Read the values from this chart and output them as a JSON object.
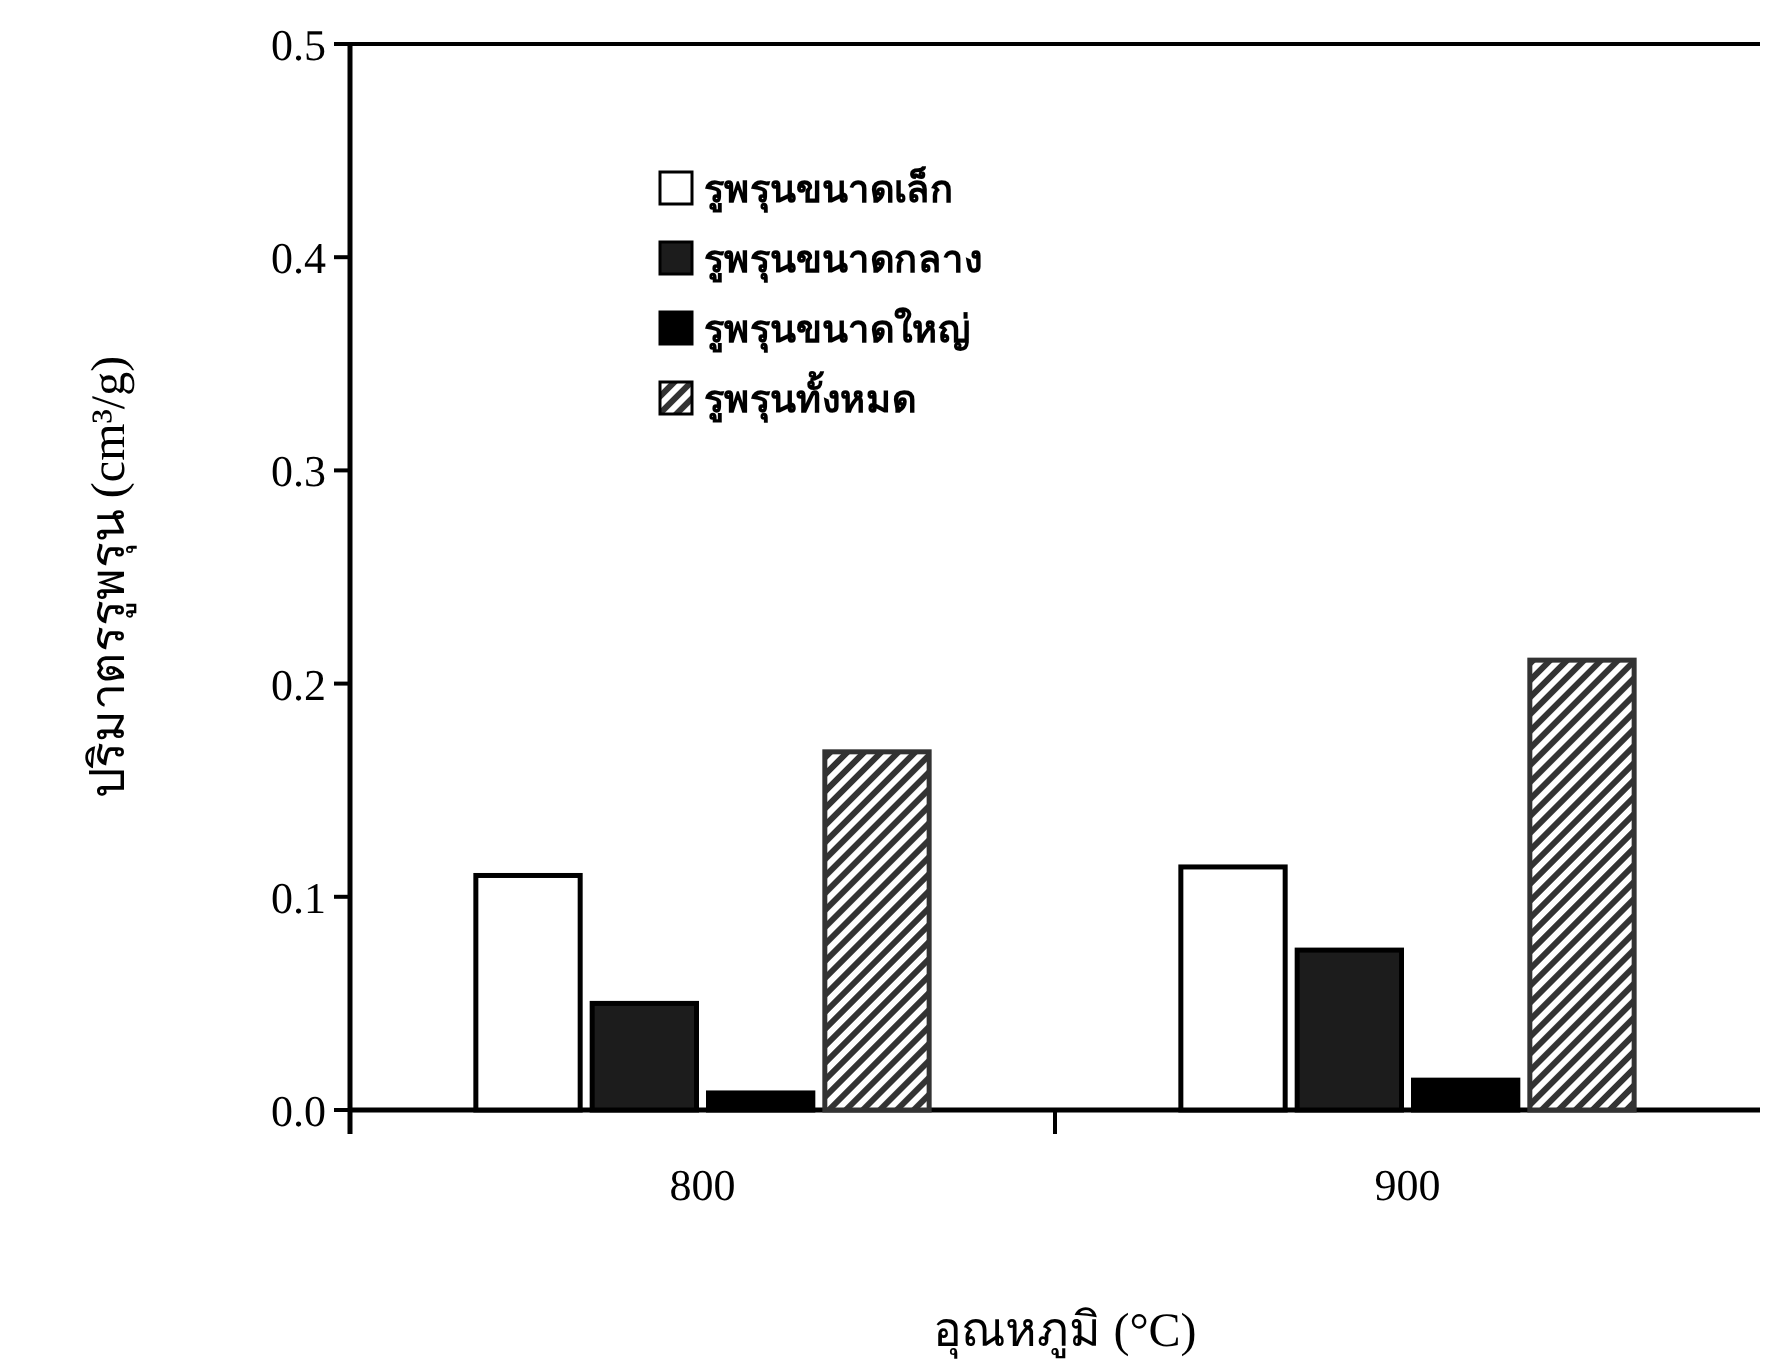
{
  "chart_data": {
    "type": "bar",
    "xlabel": "อุณหภูมิ (°C)",
    "ylabel": "ปริมาตรรูพรุน (cm³/g)",
    "categories": [
      "800",
      "900"
    ],
    "series": [
      {
        "name": "รูพรุนขนาดเล็ก",
        "color": "#ffffff",
        "values": [
          0.11,
          0.114
        ]
      },
      {
        "name": "รูพรุนขนาดกลาง",
        "color": "#1c1c1c",
        "values": [
          0.05,
          0.075
        ]
      },
      {
        "name": "รูพรุนขนาดใหญ่",
        "color": "#000000",
        "values": [
          0.008,
          0.014
        ]
      },
      {
        "name": "รูพรุนทั้งหมด",
        "color": "#333333",
        "values": [
          0.168,
          0.211
        ]
      }
    ],
    "ylim": [
      0,
      0.5
    ],
    "yticks": [
      {
        "value": 0,
        "label": "0.0"
      },
      0.1,
      0.2,
      0.3,
      0.4,
      0.5
    ],
    "legend": "top left",
    "grid": false
  }
}
